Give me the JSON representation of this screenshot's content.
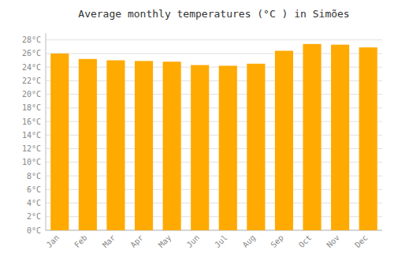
{
  "chart_data": {
    "type": "bar",
    "title": "Average monthly temperatures (°C ) in Simões",
    "categories": [
      "Jan",
      "Feb",
      "Mar",
      "Apr",
      "May",
      "Jun",
      "Jul",
      "Aug",
      "Sep",
      "Oct",
      "Nov",
      "Dec"
    ],
    "values": [
      26.0,
      25.2,
      25.0,
      24.9,
      24.8,
      24.3,
      24.2,
      24.5,
      26.4,
      27.4,
      27.3,
      26.9
    ],
    "color": "#FFAA00",
    "ylim": [
      0,
      29
    ],
    "yticks": [
      {
        "value": 0,
        "label": "0°C"
      },
      {
        "value": 2,
        "label": "2°C"
      },
      {
        "value": 4,
        "label": "4°C"
      },
      {
        "value": 6,
        "label": "6°C"
      },
      {
        "value": 8,
        "label": "8°C"
      },
      {
        "value": 10,
        "label": "10°C"
      },
      {
        "value": 12,
        "label": "12°C"
      },
      {
        "value": 14,
        "label": "14°C"
      },
      {
        "value": 16,
        "label": "16°C"
      },
      {
        "value": 18,
        "label": "18°C"
      },
      {
        "value": 20,
        "label": "20°C"
      },
      {
        "value": 22,
        "label": "22°C"
      },
      {
        "value": 24,
        "label": "24°C"
      },
      {
        "value": 26,
        "label": "26°C"
      },
      {
        "value": 28,
        "label": "28°C"
      }
    ],
    "grid": true
  }
}
